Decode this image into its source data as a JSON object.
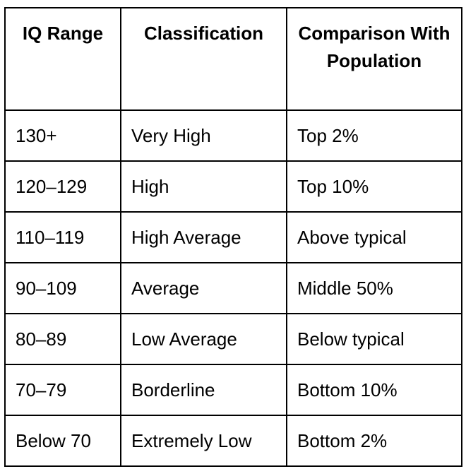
{
  "table": {
    "header": [
      "IQ Range",
      "Classification",
      "Comparison With Population"
    ],
    "rows": [
      [
        "130+",
        "Very High",
        "Top 2%"
      ],
      [
        "120–129",
        "High",
        "Top 10%"
      ],
      [
        "110–119",
        "High Average",
        "Above typical"
      ],
      [
        "90–109",
        "Average",
        "Middle 50%"
      ],
      [
        "80–89",
        "Low Average",
        "Below typical"
      ],
      [
        "70–79",
        "Borderline",
        "Bottom 10%"
      ],
      [
        "Below 70",
        "Extremely Low",
        "Bottom 2%"
      ]
    ]
  }
}
